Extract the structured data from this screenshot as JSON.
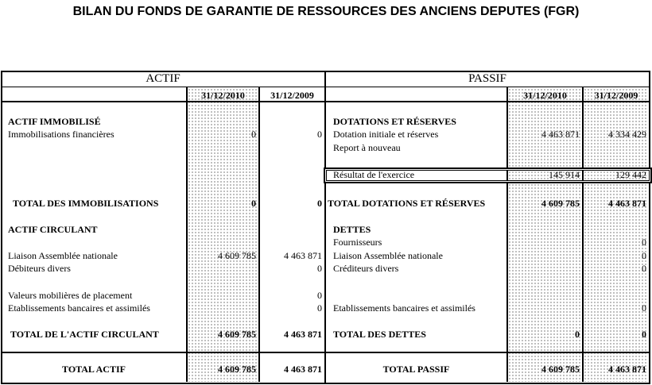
{
  "title": "BILAN DU FONDS DE GARANTIE DE RESSOURCES DES ANCIENS DEPUTES (FGR)",
  "actif": {
    "header": "ACTIF",
    "col1": "31/12/2010",
    "col2": "31/12/2009",
    "rows": [
      {
        "label": "ACTIF IMMOBILISÉ",
        "v1": "",
        "v2": ""
      },
      {
        "label": "Immobilisations financières",
        "v1": "0",
        "v2": "0"
      },
      {
        "label": "TOTAL DES IMMOBILISATIONS",
        "v1": "0",
        "v2": "0"
      },
      {
        "label": "ACTIF CIRCULANT",
        "v1": "",
        "v2": ""
      },
      {
        "label": "Liaison Assemblée nationale",
        "v1": "4 609 785",
        "v2": "4 463 871"
      },
      {
        "label": "Débiteurs divers",
        "v1": "",
        "v2": "0"
      },
      {
        "label": "Valeurs mobilières de placement",
        "v1": "",
        "v2": "0"
      },
      {
        "label": "Etablissements bancaires et assimilés",
        "v1": "",
        "v2": "0"
      },
      {
        "label": "TOTAL DE L'ACTIF CIRCULANT",
        "v1": "4 609 785",
        "v2": "4 463 871"
      },
      {
        "label": "TOTAL ACTIF",
        "v1": "4 609 785",
        "v2": "4 463 871"
      }
    ]
  },
  "passif": {
    "header": "PASSIF",
    "col1": "31/12/2010",
    "col2": "31/12/2009",
    "rows": [
      {
        "label": "DOTATIONS ET RÉSERVES",
        "v1": "",
        "v2": ""
      },
      {
        "label": "Dotation initiale et réserves",
        "v1": "4 463 871",
        "v2": "4 334 429"
      },
      {
        "label": "Report à nouveau",
        "v1": "",
        "v2": ""
      },
      {
        "label": "Résultat de l'exercice",
        "v1": "145 914",
        "v2": "129 442"
      },
      {
        "label": "TOTAL DOTATIONS ET RÉSERVES",
        "v1": "4 609 785",
        "v2": "4 463 871"
      },
      {
        "label": "DETTES",
        "v1": "",
        "v2": ""
      },
      {
        "label": "Fournisseurs",
        "v1": "",
        "v2": "0"
      },
      {
        "label": "Liaison Assemblée nationale",
        "v1": "",
        "v2": "0"
      },
      {
        "label": "Créditeurs divers",
        "v1": "",
        "v2": "0"
      },
      {
        "label": "Etablissements bancaires et assimilés",
        "v1": "",
        "v2": "0"
      },
      {
        "label": "TOTAL DES DETTES",
        "v1": "0",
        "v2": "0"
      },
      {
        "label": "TOTAL PASSIF",
        "v1": "4 609 785",
        "v2": "4 463 871"
      }
    ]
  }
}
